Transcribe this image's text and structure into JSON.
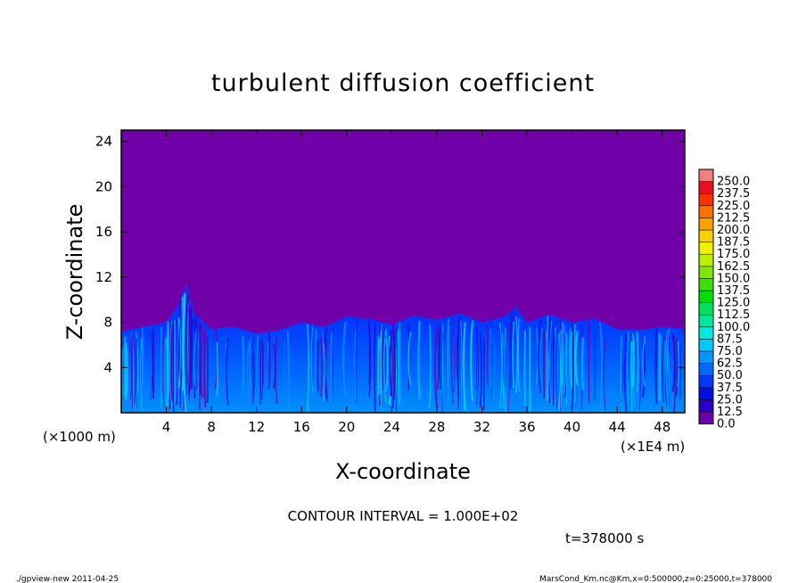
{
  "chart_data": {
    "type": "heatmap",
    "title": "turbulent diffusion coefficient",
    "xlabel": "X-coordinate",
    "ylabel": "Z-coordinate",
    "x_unit": "(×1E4 m)",
    "y_unit": "(×1000 m)",
    "xlim": [
      0,
      50
    ],
    "ylim": [
      0,
      25
    ],
    "x_ticks": [
      4,
      8,
      12,
      16,
      20,
      24,
      28,
      32,
      36,
      40,
      44,
      48
    ],
    "y_ticks": [
      4,
      8,
      12,
      16,
      20,
      24
    ],
    "colorbar_levels": [
      "0.0",
      "12.5",
      "25.0",
      "37.5",
      "50.0",
      "62.5",
      "75.0",
      "87.5",
      "100.0",
      "112.5",
      "125.0",
      "137.5",
      "150.0",
      "162.5",
      "175.0",
      "187.5",
      "200.0",
      "212.5",
      "225.0",
      "237.5",
      "250.0"
    ],
    "colorbar_colors": [
      "#6a00a8",
      "#2a00c8",
      "#0010e0",
      "#0038ff",
      "#0068ff",
      "#0098ff",
      "#00c8ff",
      "#00e8e0",
      "#00e8a0",
      "#00e060",
      "#00e000",
      "#40e000",
      "#80e800",
      "#c0f000",
      "#f0f000",
      "#ffd000",
      "#ffa000",
      "#ff7000",
      "#ff3000",
      "#e81020",
      "#f08080"
    ],
    "background_value_color": "#7000a8",
    "turbulent_layer": {
      "base_top_z": 7.2,
      "x_samples": [
        0,
        2,
        4,
        5,
        5.8,
        6.5,
        8,
        10,
        12,
        14,
        16,
        18,
        20,
        22,
        24,
        26,
        28,
        30,
        32,
        34,
        35,
        36,
        38,
        40,
        42,
        44,
        46,
        48,
        50
      ],
      "top_z": [
        7.2,
        7.6,
        8.0,
        9.5,
        11.5,
        8.8,
        7.4,
        7.6,
        7.0,
        7.3,
        8.0,
        7.6,
        8.5,
        8.3,
        7.8,
        8.6,
        8.2,
        8.8,
        8.0,
        8.5,
        9.4,
        8.0,
        8.7,
        8.0,
        8.3,
        7.4,
        7.3,
        7.6,
        7.4
      ]
    },
    "annotation_contour": "CONTOUR INTERVAL = 1.000E+02",
    "annotation_time": "t=378000 s"
  },
  "footer": {
    "left": "./gpview-new  2011-04-25",
    "right": "MarsCond_Km.nc@Km,x=0:500000,z=0:25000,t=378000"
  }
}
